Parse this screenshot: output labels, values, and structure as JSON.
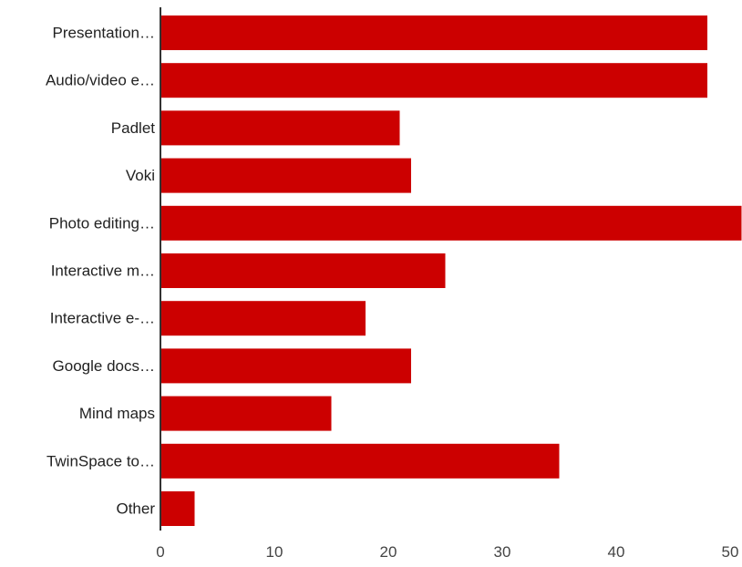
{
  "chart_data": {
    "type": "bar",
    "orientation": "horizontal",
    "categories": [
      "Presentation…",
      "Audio/video e…",
      "Padlet",
      "Voki",
      "Photo editing…",
      "Interactive m…",
      "Interactive e-…",
      "Google docs…",
      "Mind maps",
      "TwinSpace to…",
      "Other"
    ],
    "values": [
      48,
      48,
      21,
      22,
      51,
      25,
      18,
      22,
      15,
      35,
      3
    ],
    "xlim": [
      0,
      51
    ],
    "xticks": [
      0,
      10,
      20,
      30,
      40,
      50
    ],
    "title": "",
    "xlabel": "",
    "ylabel": "",
    "grid": false,
    "legend": "none",
    "bar_color": "#cc0000",
    "axis_color": "#333333"
  }
}
